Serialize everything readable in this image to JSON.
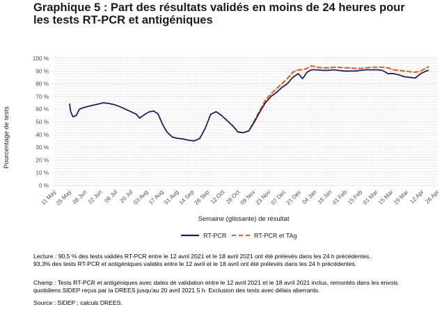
{
  "title_lines": [
    "Graphique 5 : Part des résultats validés en moins de 24 heures pour",
    "les tests RT-PCR et antigéniques"
  ],
  "notes": {
    "lecture": [
      "Lecture : 90,5 % des tests validés RT-PCR entre le 12 avril 2021 et le 18 avril 2021 ont été prélevés dans les 24 h précédentes.",
      "93,3% des tests RT-PCR et antigéniques validés entre le 12 avril et le 18 avril ont été prélevés dans les 24 h précédentes."
    ],
    "champ": [
      "Champ : Tests RT-PCR et antigéniques avec dates de validation entre le 12 avril 2021 et le 18 avril 2021 inclus, remontés dans les envois",
      "quotidiens SIDEP reçus par la DREES jusqu'au 20 avril 2021 5 h. Exclusion des tests avec délais aberrants."
    ],
    "source": "Source : SIDEP ; calculs DREES."
  },
  "colors": {
    "rtpcr": "#1a1f5e",
    "tag": "#e8622c",
    "grid": "#d4d4d4",
    "axis_text": "#4d4d4d"
  },
  "chart_data": {
    "type": "line",
    "xlabel": "Semaine (glissante) de résultat",
    "ylabel": "Pourcentage de tests",
    "ylim": [
      0,
      100
    ],
    "y_ticks": [
      0,
      10,
      20,
      30,
      40,
      50,
      60,
      70,
      80,
      90,
      100
    ],
    "y_tick_labels": [
      "0 %",
      "10 %",
      "20 %",
      "30 %",
      "40 %",
      "50 %",
      "60 %",
      "70 %",
      "80 %",
      "90 %",
      "100 %"
    ],
    "x_range": [
      "2020-05-11",
      "2021-04-26"
    ],
    "x_tick_dates": [
      "2020-05-11",
      "2020-05-25",
      "2020-06-08",
      "2020-06-22",
      "2020-07-06",
      "2020-07-20",
      "2020-08-03",
      "2020-08-17",
      "2020-08-31",
      "2020-09-14",
      "2020-09-28",
      "2020-10-12",
      "2020-10-26",
      "2020-11-09",
      "2020-11-23",
      "2020-12-07",
      "2020-12-21",
      "2021-01-04",
      "2021-01-18",
      "2021-02-01",
      "2021-02-15",
      "2021-03-01",
      "2021-03-15",
      "2021-03-29",
      "2021-04-12",
      "2021-04-26"
    ],
    "x_tick_labels": [
      "11 May",
      "25 May",
      "08 Jun",
      "22 Jun",
      "06 Jul",
      "20 Jul",
      "03 Aug",
      "17 Aug",
      "31 Aug",
      "14 Sep",
      "28 Sep",
      "12 Oct",
      "26 Oct",
      "09 Nov",
      "23 Nov",
      "07 Dec",
      "21 Dec",
      "04 Jan",
      "18 Jan",
      "01 Feb",
      "15 Feb",
      "01 Mar",
      "15 Mar",
      "29 Mar",
      "12 Apr",
      "26 Apr"
    ],
    "grid": true,
    "legend_position": "bottom",
    "series": [
      {
        "name": "RT-PCR",
        "style": "solid",
        "x": [
          "2020-05-25",
          "2020-05-26",
          "2020-05-28",
          "2020-05-31",
          "2020-06-03",
          "2020-06-06",
          "2020-06-10",
          "2020-06-15",
          "2020-06-20",
          "2020-06-25",
          "2020-06-30",
          "2020-07-05",
          "2020-07-10",
          "2020-07-15",
          "2020-07-20",
          "2020-07-25",
          "2020-07-28",
          "2020-08-02",
          "2020-08-06",
          "2020-08-10",
          "2020-08-14",
          "2020-08-18",
          "2020-08-22",
          "2020-08-27",
          "2020-09-01",
          "2020-09-06",
          "2020-09-11",
          "2020-09-16",
          "2020-09-21",
          "2020-09-26",
          "2020-10-01",
          "2020-10-06",
          "2020-10-11",
          "2020-10-16",
          "2020-10-21",
          "2020-10-26",
          "2020-10-31",
          "2020-11-05",
          "2020-11-10",
          "2020-11-15",
          "2020-11-20",
          "2020-11-25",
          "2020-11-30",
          "2020-12-05",
          "2020-12-10",
          "2020-12-15",
          "2020-12-20",
          "2020-12-24",
          "2020-12-28",
          "2021-01-01",
          "2021-01-06",
          "2021-01-11",
          "2021-01-16",
          "2021-01-21",
          "2021-01-26",
          "2021-01-31",
          "2021-02-05",
          "2021-02-10",
          "2021-02-15",
          "2021-02-20",
          "2021-02-25",
          "2021-03-02",
          "2021-03-07",
          "2021-03-12",
          "2021-03-17",
          "2021-03-22",
          "2021-03-27",
          "2021-04-01",
          "2021-04-06",
          "2021-04-11",
          "2021-04-16",
          "2021-04-18"
        ],
        "values": [
          64,
          58,
          54,
          55,
          60,
          61,
          62,
          63,
          64,
          65,
          64.5,
          63.5,
          62,
          60,
          58,
          56,
          53,
          56,
          58,
          58.5,
          56,
          48,
          42,
          38,
          37,
          36.5,
          35.5,
          35,
          37,
          45,
          56,
          58,
          55,
          51,
          47,
          42,
          41.5,
          43,
          50,
          58,
          65,
          70,
          73,
          77,
          80,
          85,
          88,
          84,
          89,
          91,
          91,
          90.5,
          90.5,
          91,
          90.5,
          90,
          90,
          90,
          90.5,
          91,
          91,
          91,
          90.5,
          88,
          88,
          87,
          85.5,
          85,
          84.5,
          88,
          90,
          90.5
        ]
      },
      {
        "name": "RT-PCR et TAg",
        "style": "dashed",
        "x": [
          "2020-10-26",
          "2020-10-31",
          "2020-11-05",
          "2020-11-10",
          "2020-11-15",
          "2020-11-20",
          "2020-11-25",
          "2020-11-30",
          "2020-12-05",
          "2020-12-10",
          "2020-12-15",
          "2020-12-20",
          "2020-12-24",
          "2020-12-28",
          "2021-01-01",
          "2021-01-06",
          "2021-01-11",
          "2021-01-16",
          "2021-01-21",
          "2021-01-26",
          "2021-01-31",
          "2021-02-05",
          "2021-02-10",
          "2021-02-15",
          "2021-02-20",
          "2021-02-25",
          "2021-03-02",
          "2021-03-07",
          "2021-03-12",
          "2021-03-17",
          "2021-03-22",
          "2021-03-27",
          "2021-04-01",
          "2021-04-06",
          "2021-04-11",
          "2021-04-16",
          "2021-04-18"
        ],
        "values": [
          42,
          41.5,
          43,
          51,
          59,
          67,
          72,
          76,
          80,
          84,
          89,
          91,
          91,
          92,
          94,
          93,
          92.5,
          92.5,
          93,
          93,
          92.5,
          92.5,
          92,
          92,
          92.5,
          93,
          93,
          93,
          92.5,
          91,
          90.5,
          90,
          89.5,
          89,
          90,
          92.5,
          93.3
        ]
      }
    ]
  }
}
